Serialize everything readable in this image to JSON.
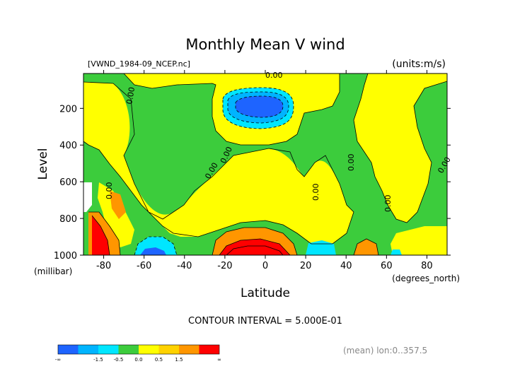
{
  "chart_data": {
    "type": "heatmap",
    "title": "Monthly Mean V wind",
    "dataset": "[VWND_1984-09_NCEP.nc]",
    "units": "(units:m/s)",
    "xlabel": "Latitude",
    "x_unit": "(degrees_north)",
    "ylabel": "Level",
    "y_unit": "(millibar)",
    "xlim": [
      -90,
      90
    ],
    "ylim": [
      1000,
      10
    ],
    "y_reversed": true,
    "x_ticks": [
      -80,
      -60,
      -40,
      -20,
      0,
      20,
      40,
      60,
      80
    ],
    "y_ticks": [
      200,
      400,
      600,
      800,
      1000
    ],
    "contour_interval_text": "CONTOUR INTERVAL = 5.000E-01",
    "contour_label": "0.00",
    "footer": "(mean) lon:0..357.5",
    "colorbar": {
      "labels": [
        "-∞",
        "-1.5",
        "-0.5",
        "0.0",
        "0.5",
        "1.5",
        "∞"
      ],
      "bins": [
        {
          "range": "< -1.5",
          "color": "#1e64ff"
        },
        {
          "range": "-1.5 to -1.0",
          "color": "#00b4ff"
        },
        {
          "range": "-1.0 to -0.5",
          "color": "#00e6ff"
        },
        {
          "range": "-0.5 to 0.0",
          "color": "#3ccc3c"
        },
        {
          "range": "0.0 to 0.5",
          "color": "#ffff00"
        },
        {
          "range": "0.5 to 1.0",
          "color": "#ffd200"
        },
        {
          "range": "1.0 to 1.5",
          "color": "#ff9600"
        },
        {
          "range": "> 1.5",
          "color": "#ff0000"
        }
      ]
    },
    "features": [
      {
        "name": "negative-jet-core",
        "lat": -4,
        "level": 160,
        "value": -2.0
      },
      {
        "name": "positive-surface-max",
        "lat": -10,
        "level": 980,
        "value": 2.0
      },
      {
        "name": "positive-antarctic-surface",
        "lat": -84,
        "level": 900,
        "value": 2.0
      },
      {
        "name": "negative-southern-ocean-surface",
        "lat": -60,
        "level": 980,
        "value": -2.0
      }
    ]
  }
}
